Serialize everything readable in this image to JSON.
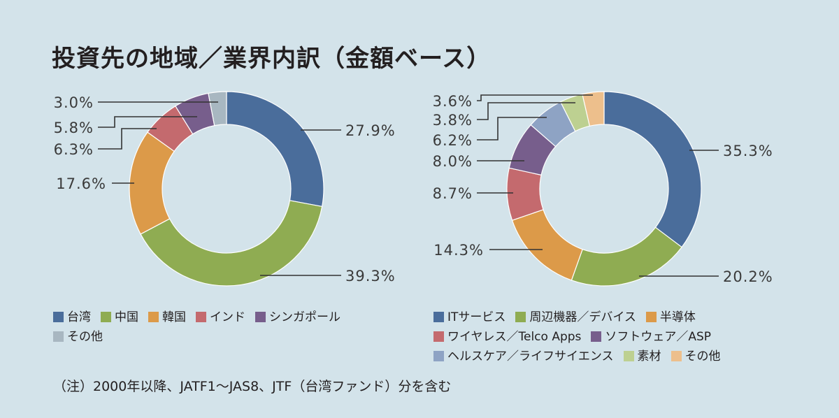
{
  "title": "投資先の地域／業界内訳（金額ベース）",
  "note": "（注）2000年以降、JATF1～JAS8、JTF（台湾ファンド）分を含む",
  "chart_data": [
    {
      "type": "pie",
      "name": "region",
      "variant": "donut",
      "categories": [
        "台湾",
        "中国",
        "韓国",
        "インド",
        "シンガポール",
        "その他"
      ],
      "values": [
        27.9,
        39.3,
        17.6,
        6.3,
        5.8,
        3.0
      ],
      "labels": [
        "27.9%",
        "39.3%",
        "17.6%",
        "6.3%",
        "5.8%",
        "3.0%"
      ],
      "colors": [
        "#4a6d9b",
        "#8fac52",
        "#dc9a49",
        "#c46a6e",
        "#775e8c",
        "#a8b7c1"
      ]
    },
    {
      "type": "pie",
      "name": "industry",
      "variant": "donut",
      "categories": [
        "ITサービス",
        "周辺機器／デバイス",
        "半導体",
        "ワイヤレス／Telco Apps",
        "ソフトウェア／ASP",
        "ヘルスケア／ライフサイエンス",
        "素材",
        "その他"
      ],
      "values": [
        35.3,
        20.2,
        14.3,
        8.7,
        8.0,
        6.2,
        3.8,
        3.6
      ],
      "labels": [
        "35.3%",
        "20.2%",
        "14.3%",
        "8.7%",
        "8.0%",
        "6.2%",
        "3.8%",
        "3.6%"
      ],
      "colors": [
        "#4a6d9b",
        "#8fac52",
        "#dc9a49",
        "#c46a6e",
        "#775e8c",
        "#8ea3c4",
        "#bdd091",
        "#edbf8c"
      ]
    }
  ]
}
